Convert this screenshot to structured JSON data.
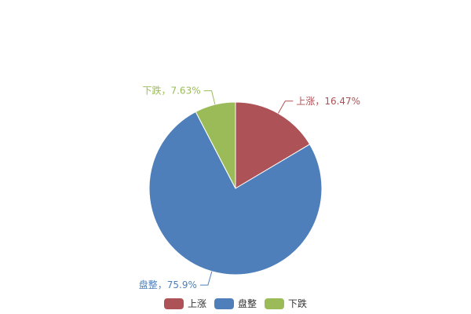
{
  "chart_data": {
    "type": "pie",
    "title": "",
    "start": "top",
    "direction": "clockwise",
    "slices": [
      {
        "name": "上涨",
        "value": 16.47,
        "label": "上涨，16.47%",
        "color": "#ad5256"
      },
      {
        "name": "盘整",
        "value": 75.9,
        "label": "盘整，75.9%",
        "color": "#4e7fbb"
      },
      {
        "name": "下跌",
        "value": 7.63,
        "label": "下跌，7.63%",
        "color": "#9bbb59"
      }
    ],
    "legend": {
      "placement": "bottom",
      "entries": [
        "上涨",
        "盘整",
        "下跌"
      ]
    }
  }
}
